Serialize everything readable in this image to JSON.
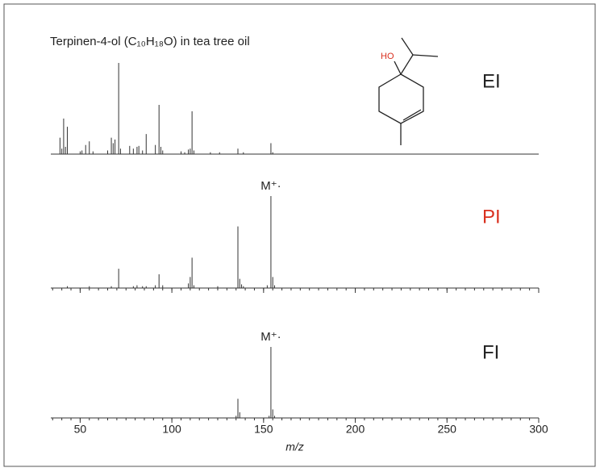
{
  "title": "Terpinen-4-ol (C₁₀H₁₈O) in tea tree oil",
  "structure_label": "HO",
  "chart_data": [
    {
      "type": "stem",
      "label": "EI",
      "label_color": "#222222",
      "color": "#333333",
      "x": [
        39,
        40,
        41,
        42,
        43,
        50,
        51,
        53,
        55,
        57,
        65,
        67,
        68,
        69,
        71,
        72,
        77,
        79,
        81,
        82,
        84,
        86,
        91,
        93,
        94,
        95,
        105,
        107,
        109,
        110,
        111,
        112,
        121,
        126,
        136,
        139,
        154,
        155
      ],
      "values": [
        18,
        6,
        39,
        8,
        30,
        3,
        4,
        10,
        14,
        3,
        4,
        18,
        12,
        16,
        100,
        6,
        9,
        6,
        8,
        9,
        4,
        22,
        10,
        54,
        8,
        4,
        3,
        2,
        5,
        6,
        47,
        4,
        2,
        2,
        6,
        2,
        12,
        2
      ],
      "xlim": [
        34,
        300
      ],
      "ylim": [
        0,
        100
      ]
    },
    {
      "type": "stem",
      "label": "PI",
      "label_color": "#d9301f",
      "color": "#333333",
      "annotation": "M⁺·",
      "x": [
        43,
        55,
        67,
        71,
        79,
        81,
        84,
        86,
        91,
        93,
        95,
        109,
        110,
        111,
        112,
        125,
        136,
        137,
        138,
        139,
        152,
        154,
        155,
        156
      ],
      "values": [
        2,
        2,
        2,
        21,
        2,
        3,
        2,
        2,
        3,
        15,
        3,
        5,
        12,
        33,
        3,
        2,
        67,
        10,
        4,
        2,
        3,
        100,
        12,
        3
      ],
      "xlim": [
        34,
        300
      ],
      "ylim": [
        0,
        100
      ]
    },
    {
      "type": "stem",
      "label": "FI",
      "label_color": "#222222",
      "color": "#333333",
      "annotation": "M⁺·",
      "x": [
        135,
        136,
        137,
        153,
        154,
        155,
        156
      ],
      "values": [
        3,
        27,
        8,
        3,
        100,
        12,
        3
      ],
      "xlim": [
        34,
        300
      ],
      "ylim": [
        0,
        100
      ],
      "xticks": [
        50,
        100,
        150,
        200,
        250,
        300
      ],
      "xlabel": "m/z"
    }
  ]
}
